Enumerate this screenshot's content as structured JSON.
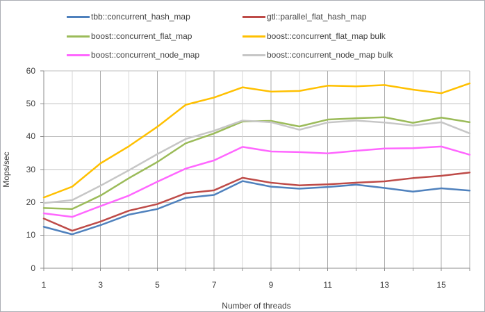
{
  "chart_data": {
    "type": "line",
    "title": "",
    "xlabel": "Number of threads",
    "ylabel": "Mops/sec",
    "x": [
      1,
      2,
      3,
      4,
      5,
      6,
      7,
      8,
      9,
      10,
      11,
      12,
      13,
      14,
      15,
      16
    ],
    "xlim": [
      1,
      16
    ],
    "ylim": [
      0,
      60
    ],
    "yticks": [
      0,
      10,
      20,
      30,
      40,
      50,
      60
    ],
    "xticks_minor": [
      1,
      2,
      3,
      4,
      5,
      6,
      7,
      8,
      9,
      10,
      11,
      12,
      13,
      14,
      15,
      16
    ],
    "xticks_labeled": [
      1,
      3,
      5,
      7,
      9,
      11,
      13,
      15
    ],
    "grid": true,
    "legend_position": "top",
    "series": [
      {
        "name": "tbb::concurrent_hash_map",
        "color": "#4F81BD",
        "values": [
          12.6,
          10.3,
          13.1,
          16.3,
          18.0,
          21.4,
          22.3,
          26.5,
          24.8,
          24.2,
          24.7,
          25.4,
          24.4,
          23.3,
          24.3,
          23.6
        ]
      },
      {
        "name": "gtl::parallel_flat_hash_map",
        "color": "#BE4B48",
        "values": [
          15.1,
          11.4,
          14.2,
          17.5,
          19.5,
          22.8,
          23.7,
          27.5,
          26.0,
          25.2,
          25.5,
          26.0,
          26.4,
          27.4,
          28.1,
          29.1
        ]
      },
      {
        "name": "boost::concurrent_flat_map",
        "color": "#9BBB59",
        "values": [
          18.3,
          18.0,
          22.1,
          27.4,
          32.3,
          38.0,
          41.0,
          44.6,
          44.8,
          43.1,
          45.2,
          45.6,
          45.9,
          44.2,
          45.8,
          44.4
        ]
      },
      {
        "name": "boost::concurrent_flat_map bulk",
        "color": "#FFC000",
        "values": [
          21.5,
          24.8,
          31.9,
          37.1,
          43.0,
          49.7,
          51.9,
          55.0,
          53.7,
          53.9,
          55.5,
          55.3,
          55.7,
          54.3,
          53.2,
          56.2
        ]
      },
      {
        "name": "boost::concurrent_node_map",
        "color": "#FF66FF",
        "values": [
          16.7,
          15.6,
          18.9,
          22.1,
          26.3,
          30.3,
          32.8,
          36.9,
          35.5,
          35.3,
          34.9,
          35.7,
          36.4,
          36.5,
          37.0,
          34.5
        ]
      },
      {
        "name": "boost::concurrent_node_map bulk",
        "color": "#C6C6C6",
        "values": [
          19.8,
          20.7,
          25.1,
          29.8,
          34.7,
          39.3,
          41.8,
          44.9,
          44.4,
          42.1,
          44.3,
          44.9,
          44.3,
          43.4,
          44.4,
          41.0
        ]
      }
    ],
    "colors": {
      "grid_major": "#BFBFBF",
      "grid_vert_major": "#ABABAB",
      "grid_vert_minor": "#D6D6D6",
      "axis": "#8C8C8C",
      "text": "#3f3f3f"
    }
  }
}
